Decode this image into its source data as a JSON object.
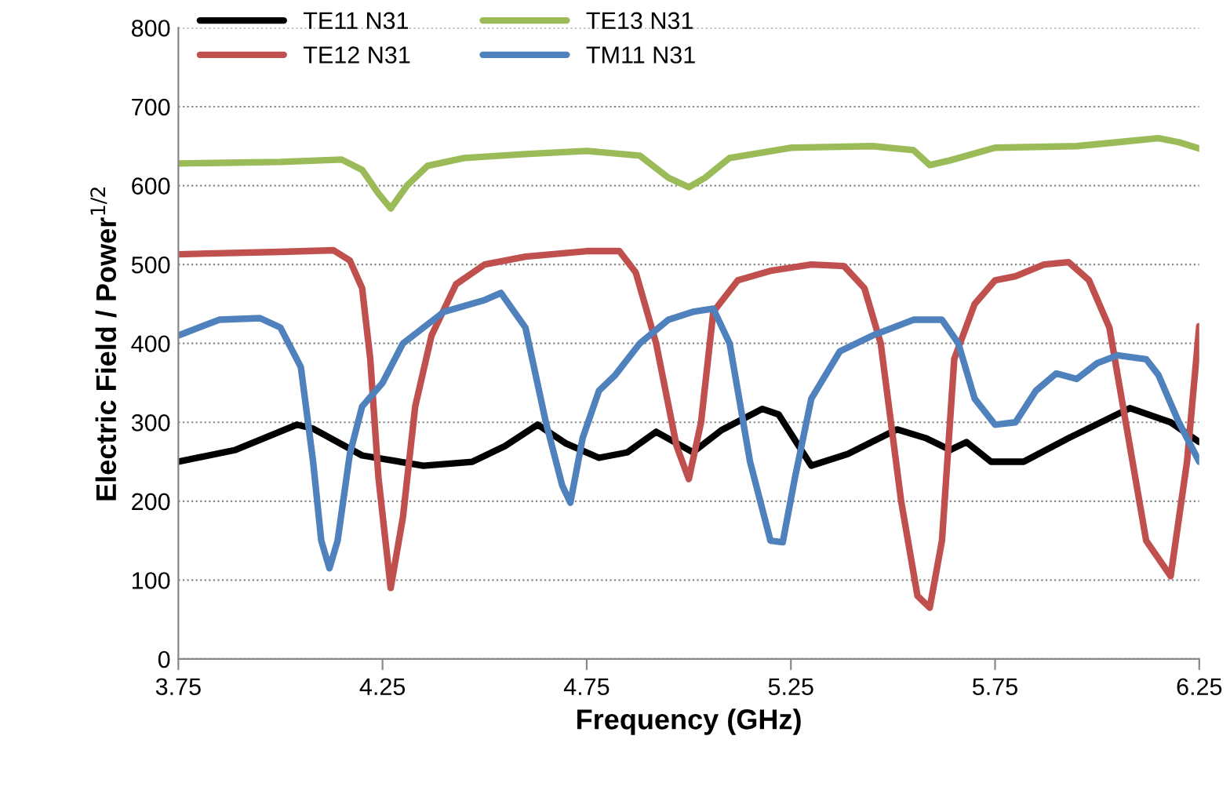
{
  "chart_data": {
    "type": "line",
    "xlabel": "Frequency (GHz)",
    "ylabel": "Electric Field / Power$^{1/2}$",
    "xlim": [
      3.75,
      6.25
    ],
    "xticks": [
      3.75,
      4.25,
      4.75,
      5.25,
      5.75,
      6.25
    ],
    "ylim": [
      0,
      800
    ],
    "yticks": [
      0,
      100,
      200,
      300,
      400,
      500,
      600,
      700,
      800
    ],
    "grid": "y",
    "legend": "top",
    "marker": "none",
    "line_style": "solid",
    "series": [
      {
        "name": "TE11 N31",
        "color": "#000000",
        "x": [
          3.75,
          3.89,
          4.04,
          4.08,
          4.2,
          4.35,
          4.47,
          4.55,
          4.63,
          4.7,
          4.78,
          4.85,
          4.92,
          5.01,
          5.08,
          5.18,
          5.22,
          5.3,
          5.39,
          5.51,
          5.58,
          5.64,
          5.68,
          5.74,
          5.82,
          5.93,
          6.08,
          6.18,
          6.25
        ],
        "values": [
          250,
          265,
          297,
          292,
          258,
          245,
          250,
          270,
          297,
          273,
          255,
          262,
          288,
          262,
          290,
          317,
          310,
          245,
          260,
          291,
          280,
          265,
          275,
          250,
          250,
          280,
          318,
          300,
          275
        ]
      },
      {
        "name": "TE12 N31",
        "color": "#c0504d",
        "x": [
          3.75,
          4.0,
          4.13,
          4.17,
          4.2,
          4.22,
          4.24,
          4.27,
          4.3,
          4.33,
          4.37,
          4.43,
          4.5,
          4.6,
          4.75,
          4.83,
          4.87,
          4.92,
          4.97,
          5.0,
          5.03,
          5.06,
          5.12,
          5.2,
          5.3,
          5.38,
          5.43,
          5.47,
          5.52,
          5.56,
          5.59,
          5.62,
          5.65,
          5.7,
          5.75,
          5.8,
          5.87,
          5.93,
          5.98,
          6.03,
          6.07,
          6.12,
          6.18,
          6.22,
          6.25
        ],
        "values": [
          513,
          516,
          518,
          505,
          470,
          380,
          230,
          90,
          180,
          320,
          410,
          475,
          500,
          510,
          517,
          517,
          490,
          400,
          270,
          228,
          300,
          440,
          480,
          492,
          500,
          498,
          470,
          400,
          200,
          80,
          65,
          150,
          380,
          450,
          480,
          485,
          500,
          503,
          480,
          420,
          300,
          150,
          105,
          250,
          422
        ]
      },
      {
        "name": "TE13 N31",
        "color": "#9bbb59",
        "x": [
          3.75,
          4.0,
          4.15,
          4.2,
          4.24,
          4.27,
          4.31,
          4.36,
          4.45,
          4.6,
          4.75,
          4.88,
          4.95,
          5.0,
          5.04,
          5.1,
          5.25,
          5.45,
          5.55,
          5.59,
          5.64,
          5.75,
          5.95,
          6.05,
          6.15,
          6.2,
          6.25
        ],
        "values": [
          628,
          630,
          633,
          620,
          590,
          571,
          600,
          625,
          635,
          640,
          644,
          638,
          610,
          598,
          610,
          635,
          648,
          650,
          645,
          626,
          632,
          648,
          650,
          655,
          660,
          655,
          647
        ]
      },
      {
        "name": "TM11 N31",
        "color": "#4f81bd",
        "x": [
          3.75,
          3.85,
          3.95,
          4.0,
          4.05,
          4.08,
          4.1,
          4.12,
          4.14,
          4.17,
          4.2,
          4.25,
          4.3,
          4.4,
          4.5,
          4.54,
          4.6,
          4.65,
          4.69,
          4.71,
          4.74,
          4.78,
          4.82,
          4.88,
          4.95,
          5.01,
          5.06,
          5.1,
          5.15,
          5.2,
          5.23,
          5.26,
          5.3,
          5.37,
          5.45,
          5.55,
          5.62,
          5.66,
          5.7,
          5.75,
          5.8,
          5.85,
          5.9,
          5.95,
          6.0,
          6.05,
          6.12,
          6.15,
          6.2,
          6.25
        ],
        "values": [
          410,
          430,
          432,
          420,
          370,
          250,
          150,
          115,
          150,
          260,
          320,
          350,
          400,
          440,
          455,
          464,
          420,
          300,
          220,
          198,
          280,
          340,
          360,
          400,
          430,
          440,
          444,
          400,
          250,
          150,
          148,
          230,
          330,
          390,
          410,
          430,
          430,
          400,
          330,
          297,
          300,
          340,
          362,
          355,
          375,
          385,
          380,
          360,
          300,
          250
        ]
      }
    ]
  }
}
